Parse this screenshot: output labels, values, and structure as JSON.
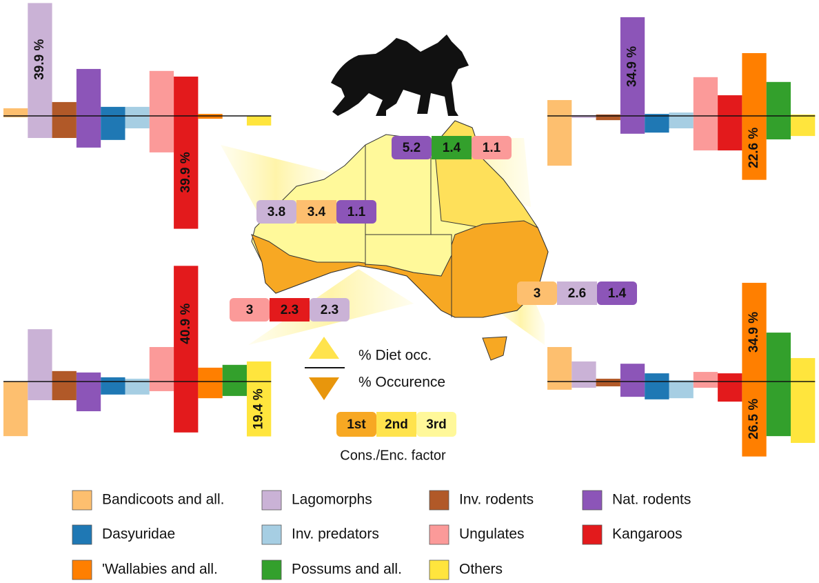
{
  "legend": {
    "items": [
      {
        "label": "Bandicoots and all.",
        "color": "#fdbf6f"
      },
      {
        "label": "Lagomorphs",
        "color": "#cab2d6"
      },
      {
        "label": "Inv. rodents",
        "color": "#b15928"
      },
      {
        "label": "Nat. rodents",
        "color": "#8c55b8"
      },
      {
        "label": "Dasyuridae",
        "color": "#1f78b4"
      },
      {
        "label": "Inv. predators",
        "color": "#a6cee3"
      },
      {
        "label": "Ungulates",
        "color": "#fb9a99"
      },
      {
        "label": "Kangaroos",
        "color": "#e31a1c"
      },
      {
        "label": "'Wallabies and all.",
        "color": "#ff7f00"
      },
      {
        "label": "Possums and all.",
        "color": "#33a02c"
      },
      {
        "label": "Others",
        "color": "#ffe53d"
      }
    ]
  },
  "chart_data": [
    {
      "type": "mirrored-bar",
      "series": [
        {
          "values": [
            2.7,
            39.9,
            4.9,
            16.6,
            3.2,
            3.2,
            15.9,
            13.9,
            0.7,
            0,
            0
          ],
          "value_labels": [
            null,
            "39.9 %",
            null,
            null,
            null,
            null,
            null,
            null,
            null,
            null,
            null
          ]
        },
        {
          "values": [
            0.5,
            7.8,
            7.8,
            11.2,
            8.5,
            4.4,
            12.9,
            39.9,
            1.0,
            0,
            3.4
          ],
          "value_labels": [
            null,
            null,
            null,
            null,
            null,
            null,
            null,
            "39.9 %",
            null,
            null,
            null
          ]
        }
      ]
    },
    {
      "type": "mirrored-bar",
      "series": [
        {
          "values": [
            5.6,
            0.3,
            0.5,
            34.9,
            0.7,
            1.2,
            13.7,
            7.3,
            22.2,
            12.0,
            0.5
          ],
          "value_labels": [
            null,
            null,
            null,
            "34.9 %",
            null,
            null,
            null,
            null,
            null,
            null,
            null
          ]
        },
        {
          "values": [
            17.6,
            0.7,
            1.5,
            6.3,
            5.9,
            4.4,
            12.2,
            12.2,
            22.6,
            8.3,
            7.1
          ],
          "value_labels": [
            null,
            null,
            null,
            null,
            null,
            null,
            null,
            null,
            "22.6 %",
            null,
            null
          ]
        }
      ]
    },
    {
      "type": "mirrored-bar",
      "series": [
        {
          "values": [
            0,
            18.5,
            3.7,
            3.2,
            1.5,
            1.0,
            12.2,
            40.9,
            4.9,
            5.9,
            7.1
          ],
          "value_labels": [
            null,
            null,
            null,
            null,
            null,
            null,
            null,
            "40.9 %",
            null,
            null,
            null
          ]
        },
        {
          "values": [
            19.3,
            6.6,
            6.6,
            10.5,
            4.6,
            4.6,
            3.4,
            18.0,
            5.9,
            5.1,
            19.4
          ],
          "value_labels": [
            null,
            null,
            null,
            null,
            null,
            null,
            null,
            null,
            null,
            null,
            "19.4 %"
          ]
        }
      ]
    },
    {
      "type": "mirrored-bar",
      "series": [
        {
          "values": [
            12.2,
            7.1,
            1.0,
            6.3,
            2.9,
            0.5,
            3.4,
            2.9,
            34.9,
            17.3,
            8.3
          ],
          "value_labels": [
            null,
            null,
            null,
            null,
            null,
            null,
            null,
            null,
            "34.9 %",
            null,
            null
          ]
        },
        {
          "values": [
            2.9,
            2.2,
            1.7,
            5.4,
            6.3,
            5.9,
            2.2,
            7.1,
            26.5,
            19.3,
            21.7
          ],
          "value_labels": [
            null,
            null,
            null,
            null,
            null,
            null,
            null,
            null,
            "26.5 %",
            null,
            null
          ]
        }
      ]
    }
  ],
  "factors": [
    {
      "values": [
        5.2,
        1.4,
        1.1
      ],
      "colors": [
        "#8c55b8",
        "#33a02c",
        "#fb9a99"
      ]
    },
    {
      "values": [
        3.8,
        3.4,
        1.1
      ],
      "colors": [
        "#cab2d6",
        "#fdbf6f",
        "#8c55b8"
      ]
    },
    {
      "values": [
        3.0,
        2.3,
        2.3
      ],
      "colors": [
        "#fb9a99",
        "#e31a1c",
        "#cab2d6"
      ]
    },
    {
      "values": [
        3.0,
        2.6,
        1.4
      ],
      "colors": [
        "#fdbf6f",
        "#cab2d6",
        "#8c55b8"
      ]
    }
  ],
  "key": {
    "above": "% Diet occ.",
    "below": "% Occurence",
    "ranks": [
      "1st",
      "2nd",
      "3rd"
    ],
    "rank_colors": [
      "#f7a823",
      "#ffe34d",
      "#fff89a"
    ],
    "factor_label": "Cons./Enc. factor"
  }
}
